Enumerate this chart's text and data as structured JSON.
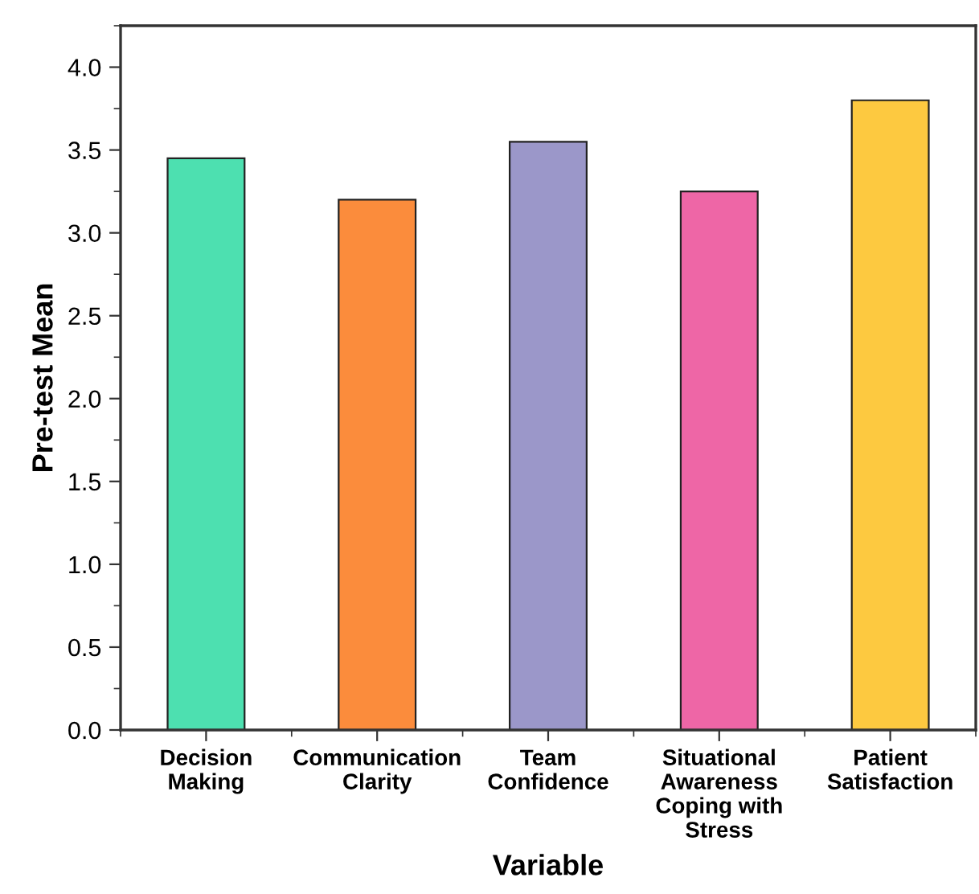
{
  "chart_data": {
    "type": "bar",
    "xlabel": "Variable",
    "ylabel": "Pre-test Mean",
    "categories": [
      "Decision\nMaking",
      "Communication\nClarity",
      "Team\nConfidence",
      "Situational\nAwareness\nCoping with\nStress",
      "Patient\nSatisfaction"
    ],
    "values": [
      3.45,
      3.2,
      3.55,
      3.25,
      3.8
    ],
    "colors": [
      "#4de0b0",
      "#fb8c3c",
      "#9b97c9",
      "#ee66a6",
      "#fdc940"
    ],
    "ylim": [
      0,
      4.25
    ],
    "yticks": [
      {
        "value": 0,
        "label": "0.0"
      },
      0.5,
      {
        "value": 1,
        "label": "1.0"
      },
      1.5,
      {
        "value": 2,
        "label": "2.0"
      },
      2.5,
      {
        "value": 3,
        "label": "3.0"
      },
      3.5,
      {
        "value": 4,
        "label": "4.0"
      }
    ],
    "grid": false,
    "legend": false
  }
}
